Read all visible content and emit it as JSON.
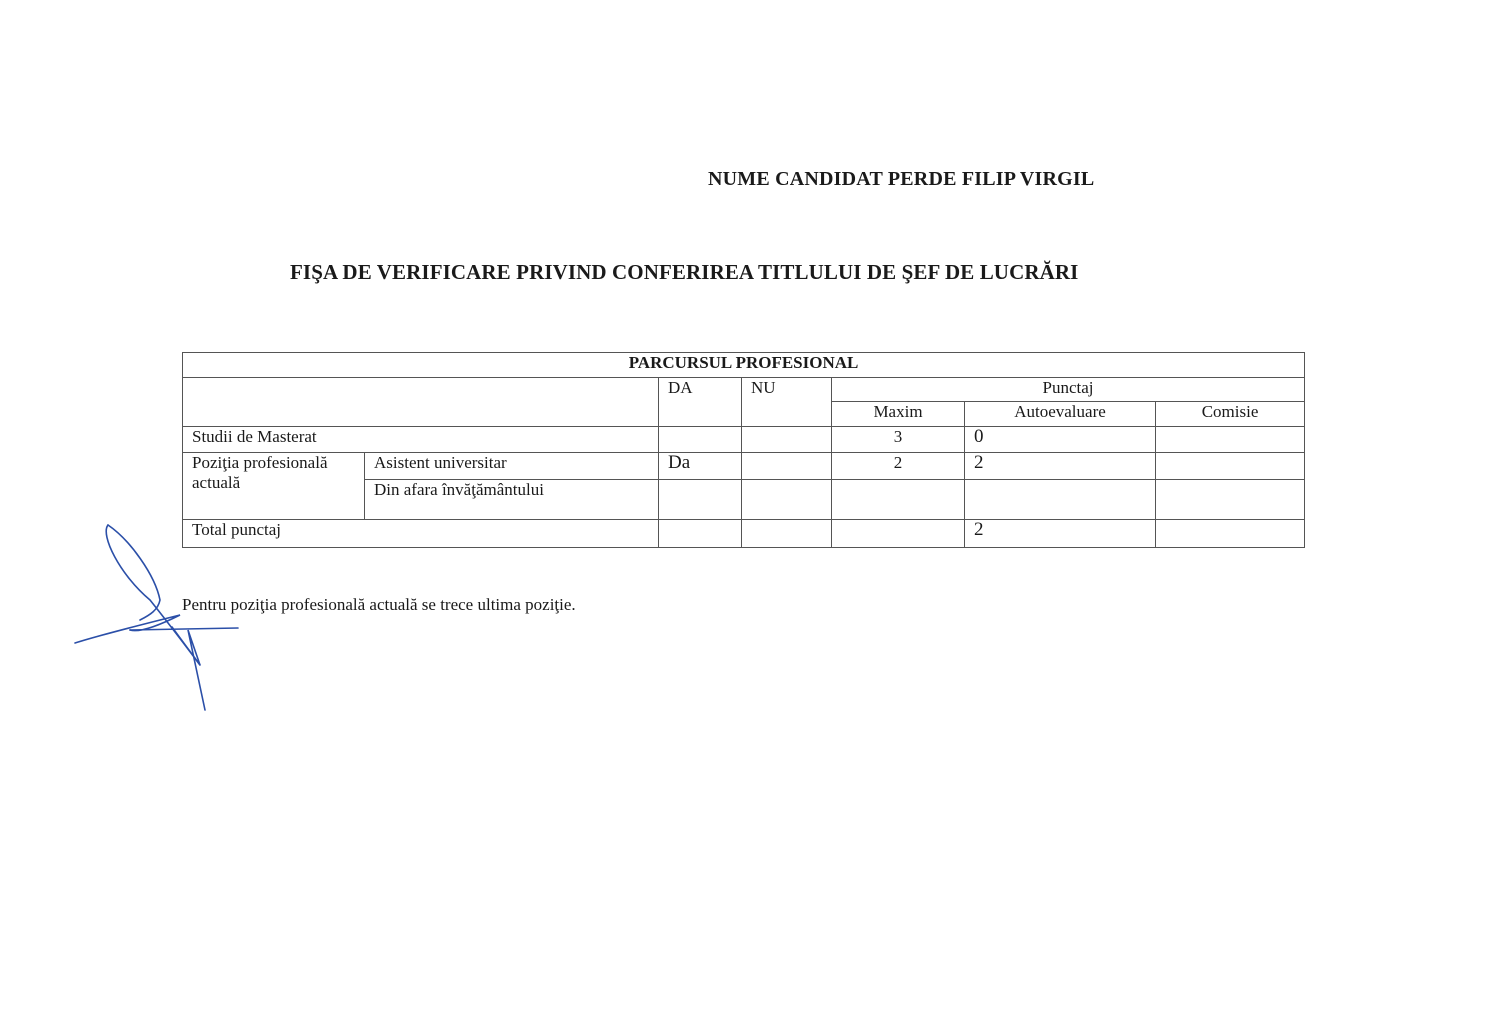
{
  "header": {
    "candidate": "NUME CANDIDAT PERDE FILIP VIRGIL",
    "title": "FIŞA DE VERIFICARE PRIVIND CONFERIREA TITLULUI DE ŞEF DE LUCRĂRI"
  },
  "table": {
    "section": "PARCURSUL PROFESIONAL",
    "col_da": "DA",
    "col_nu": "NU",
    "col_punctaj": "Punctaj",
    "col_maxim": "Maxim",
    "col_autoevaluare": "Autoevaluare",
    "col_comisie": "Comisie",
    "rows": {
      "masterat": {
        "label": "Studii de Masterat",
        "da": "",
        "nu": "",
        "maxim": "3",
        "autoevaluare": "0",
        "comisie": ""
      },
      "pozitia": {
        "label": "Poziţia profesională actuală"
      },
      "asistent": {
        "label": "Asistent universitar",
        "da": "Da",
        "nu": "",
        "maxim": "2",
        "autoevaluare": "2",
        "comisie": ""
      },
      "din_afara": {
        "label": "Din afara învăţământului",
        "da": "",
        "nu": "",
        "maxim": "",
        "autoevaluare": "",
        "comisie": ""
      },
      "total": {
        "label": "Total punctaj",
        "da": "",
        "nu": "",
        "maxim": "",
        "autoevaluare": "2",
        "comisie": ""
      }
    }
  },
  "note": "Pentru poziţia profesională actuală se trece ultima poziţie.",
  "signature_color": "#2b4fa8"
}
